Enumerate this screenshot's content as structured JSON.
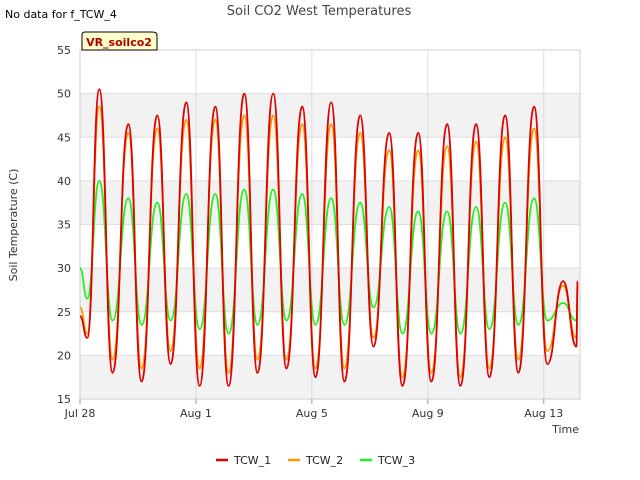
{
  "header": {
    "no_data_note": "No data for f_TCW_4",
    "site_badge": "VR_soilco2"
  },
  "chart_data": {
    "type": "line",
    "title": "Soil CO2 West Temperatures",
    "xlabel": "Time",
    "ylabel": "Soil Temperature (C)",
    "ylim": [
      15,
      55
    ],
    "yticks": [
      15,
      20,
      25,
      30,
      35,
      40,
      45,
      50,
      55
    ],
    "xlim": [
      "2023-07-28",
      "2023-08-14T06:00"
    ],
    "xticks": [
      {
        "label": "Jul 28",
        "x": "2023-07-28"
      },
      {
        "label": "Aug 1",
        "x": "2023-08-01"
      },
      {
        "label": "Aug 5",
        "x": "2023-08-05"
      },
      {
        "label": "Aug 9",
        "x": "2023-08-09"
      },
      {
        "label": "Aug 13",
        "x": "2023-08-13"
      }
    ],
    "grid": true,
    "band_background": true,
    "legend_position": "bottom-center",
    "x": [
      "2023-07-28T00:00",
      "2023-07-28T06:00",
      "2023-07-28T16:00",
      "2023-07-29T03:00",
      "2023-07-29T16:00",
      "2023-07-30T03:00",
      "2023-07-30T16:00",
      "2023-07-31T03:00",
      "2023-07-31T16:00",
      "2023-08-01T03:00",
      "2023-08-01T16:00",
      "2023-08-02T03:00",
      "2023-08-02T16:00",
      "2023-08-03T03:00",
      "2023-08-03T16:00",
      "2023-08-04T03:00",
      "2023-08-04T16:00",
      "2023-08-05T03:00",
      "2023-08-05T16:00",
      "2023-08-06T03:00",
      "2023-08-06T16:00",
      "2023-08-07T03:00",
      "2023-08-07T16:00",
      "2023-08-08T03:00",
      "2023-08-08T16:00",
      "2023-08-09T03:00",
      "2023-08-09T16:00",
      "2023-08-10T03:00",
      "2023-08-10T16:00",
      "2023-08-11T03:00",
      "2023-08-11T16:00",
      "2023-08-12T03:00",
      "2023-08-12T16:00",
      "2023-08-13T03:00",
      "2023-08-13T16:00",
      "2023-08-14T03:00",
      "2023-08-14T04:00"
    ],
    "series": [
      {
        "name": "TCW_1",
        "color": "#dd0000",
        "values": [
          24.5,
          22,
          50.5,
          18,
          46.5,
          17,
          47.5,
          19,
          49,
          16.5,
          48.5,
          16.5,
          50,
          18,
          50,
          18.5,
          48.5,
          17.5,
          49,
          17,
          47.5,
          21,
          45.5,
          16.5,
          45.5,
          17,
          46.5,
          16.5,
          46.5,
          17.5,
          47.5,
          18,
          48.5,
          19,
          28.5,
          21,
          28.5
        ]
      },
      {
        "name": "TCW_2",
        "color": "#ff9900",
        "values": [
          25.5,
          22.5,
          48.5,
          19.5,
          45.5,
          18.5,
          46,
          20.5,
          47,
          18.5,
          47,
          18,
          47.5,
          19.5,
          47.5,
          19.5,
          46.5,
          18.5,
          46.5,
          18.5,
          45.5,
          22,
          43.5,
          17.5,
          43.5,
          18,
          44,
          17.5,
          44.5,
          18.5,
          45,
          19.5,
          46,
          20.5,
          28,
          22,
          28
        ]
      },
      {
        "name": "TCW_3",
        "color": "#22ee22",
        "values": [
          30,
          26.5,
          40,
          24,
          38,
          23.5,
          37.5,
          24,
          38.5,
          23,
          38.5,
          22.5,
          39,
          23.5,
          39,
          24,
          38.5,
          23.5,
          38,
          23.5,
          37.5,
          25.5,
          37,
          22.5,
          36.5,
          22.5,
          36.5,
          22.5,
          37,
          23,
          37.5,
          23.5,
          38,
          24,
          26,
          24,
          26
        ]
      }
    ]
  }
}
